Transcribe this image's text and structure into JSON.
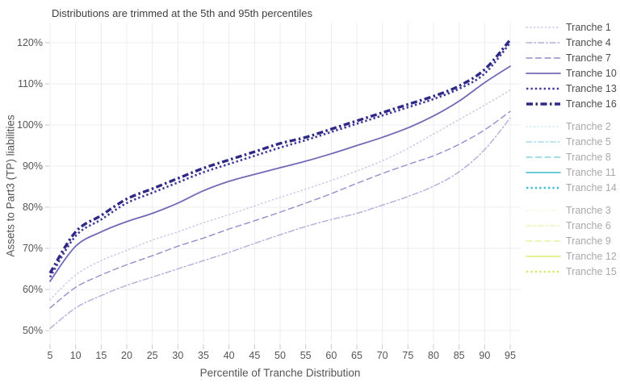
{
  "title": "Distributions are trimmed at the 5th and 95th percentiles",
  "chart_data": {
    "type": "line",
    "title": "Distributions are trimmed at the 5th and 95th percentiles",
    "xlabel": "Percentile of Tranche Distribution",
    "ylabel": "Assets to Part3 (TP) liabilities",
    "x_ticks": [
      5,
      10,
      15,
      20,
      25,
      30,
      35,
      40,
      45,
      50,
      55,
      60,
      65,
      70,
      75,
      80,
      85,
      90,
      95
    ],
    "y_ticks": [
      50,
      60,
      70,
      80,
      90,
      100,
      110,
      120
    ],
    "y_tick_suffix": "%",
    "xlim": [
      5,
      95
    ],
    "ylim": [
      46,
      124
    ],
    "grid": true,
    "legend_position": "right",
    "x": [
      5,
      10,
      15,
      20,
      25,
      30,
      35,
      40,
      45,
      50,
      55,
      60,
      65,
      70,
      75,
      80,
      85,
      90,
      95
    ],
    "series": [
      {
        "name": "Tranche 1",
        "color": "#c9c5e6",
        "dash": "dot",
        "width": 1.4,
        "legend_group": 0,
        "visible": true,
        "values": [
          57.5,
          63.5,
          67,
          69.5,
          72,
          74,
          76.2,
          78.2,
          80.3,
          82.4,
          84.4,
          86.5,
          88.8,
          91.3,
          94.3,
          97.8,
          101.3,
          104.8,
          108.5
        ]
      },
      {
        "name": "Tranche 4",
        "color": "#b2addb",
        "dash": "dashdot",
        "width": 1.4,
        "legend_group": 0,
        "visible": true,
        "values": [
          50.5,
          55.5,
          58.5,
          61,
          63,
          65,
          67,
          69,
          71.2,
          73.3,
          75.3,
          77,
          78.5,
          80.5,
          82.6,
          85.1,
          88.6,
          94,
          101.7
        ]
      },
      {
        "name": "Tranche 7",
        "color": "#948ecb",
        "dash": "dash",
        "width": 1.4,
        "legend_group": 0,
        "visible": true,
        "values": [
          55.5,
          60.5,
          63.5,
          66,
          68.2,
          70.5,
          72.5,
          74.7,
          76.7,
          78.8,
          81,
          83.3,
          85.8,
          88.2,
          90.4,
          92.5,
          95.3,
          98.8,
          103.3
        ]
      },
      {
        "name": "Tranche 10",
        "color": "#7269b7",
        "dash": "solid",
        "width": 1.8,
        "legend_group": 0,
        "visible": true,
        "values": [
          62,
          70.5,
          74,
          76.5,
          78.5,
          81,
          84,
          86.3,
          88,
          89.6,
          91.2,
          93,
          95,
          97,
          99.3,
          102.2,
          105.8,
          110.3,
          114.3
        ]
      },
      {
        "name": "Tranche 13",
        "color": "#413a96",
        "dash": "dot-bold",
        "width": 2.6,
        "legend_group": 0,
        "visible": true,
        "values": [
          63,
          73,
          77,
          81,
          83.5,
          86,
          88.5,
          90.5,
          92.5,
          94.5,
          96.3,
          98.3,
          100.3,
          102.3,
          104.3,
          106.3,
          108.8,
          112.5,
          120
        ]
      },
      {
        "name": "Tranche 16",
        "color": "#2f2986",
        "dash": "dashdot-bold",
        "width": 3.4,
        "legend_group": 0,
        "visible": true,
        "values": [
          64,
          74,
          78,
          82,
          84.5,
          87,
          89.5,
          91.5,
          93.5,
          95.5,
          97,
          99,
          101,
          103,
          105,
          107,
          109.5,
          113.5,
          120.7
        ]
      },
      {
        "name": "Tranche 2",
        "color": "#cdeaf0",
        "dash": "dot",
        "width": 1.4,
        "legend_group": 1,
        "visible": false
      },
      {
        "name": "Tranche 5",
        "color": "#a8dee8",
        "dash": "dashdot",
        "width": 1.4,
        "legend_group": 1,
        "visible": false
      },
      {
        "name": "Tranche 8",
        "color": "#87d4e0",
        "dash": "dash",
        "width": 1.4,
        "legend_group": 1,
        "visible": false
      },
      {
        "name": "Tranche 11",
        "color": "#5cc5d5",
        "dash": "solid",
        "width": 1.8,
        "legend_group": 1,
        "visible": false
      },
      {
        "name": "Tranche 14",
        "color": "#3fbdd1",
        "dash": "dot-bold",
        "width": 2.6,
        "legend_group": 1,
        "visible": false
      },
      {
        "name": "Tranche 3",
        "color": "#f6f8d9",
        "dash": "dot",
        "width": 1.4,
        "legend_group": 2,
        "visible": false
      },
      {
        "name": "Tranche 6",
        "color": "#eff4b8",
        "dash": "dashdot",
        "width": 1.4,
        "legend_group": 2,
        "visible": false
      },
      {
        "name": "Tranche 9",
        "color": "#eaf1a2",
        "dash": "dash",
        "width": 1.4,
        "legend_group": 2,
        "visible": false
      },
      {
        "name": "Tranche 12",
        "color": "#e4ed85",
        "dash": "solid",
        "width": 1.8,
        "legend_group": 2,
        "visible": false
      },
      {
        "name": "Tranche 15",
        "color": "#dde76a",
        "dash": "dot-bold",
        "width": 2.6,
        "legend_group": 2,
        "visible": false
      }
    ]
  },
  "colors": {
    "grid": "#ebecf1",
    "tick_mark": "#c9c9ce",
    "tick_text": "#555555",
    "legend_label_active": "#4c4c4c",
    "legend_label_muted": "#a9a9a9"
  }
}
